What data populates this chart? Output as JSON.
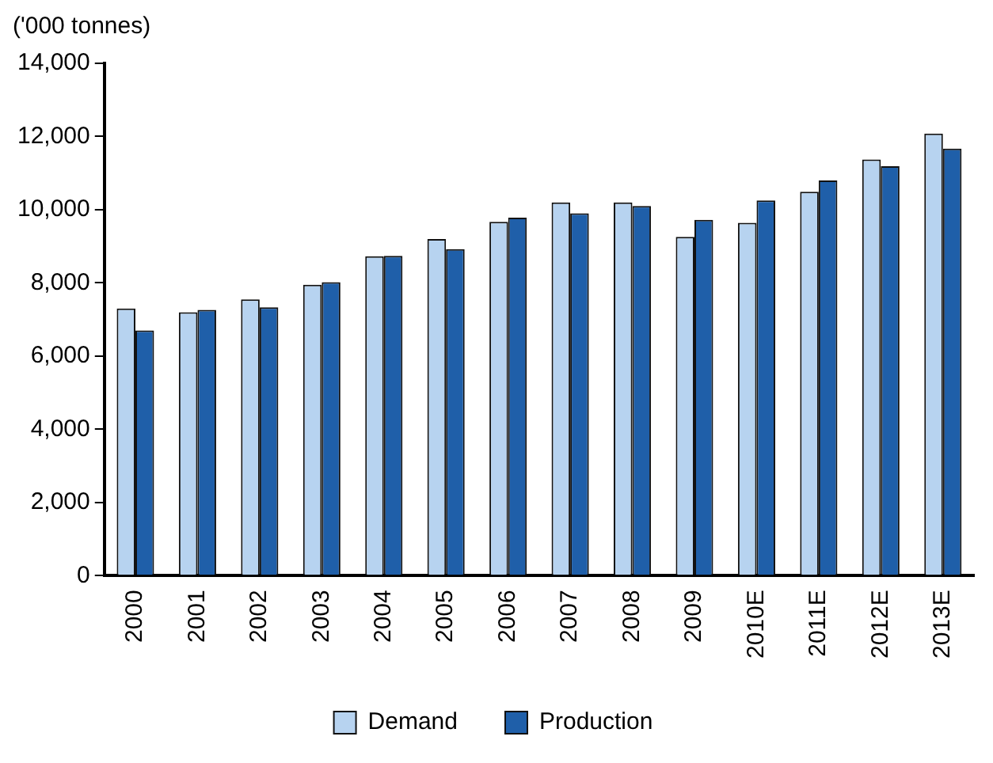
{
  "chart_data": {
    "type": "bar",
    "ylabel": "('000 tonnes)",
    "categories": [
      "2000",
      "2001",
      "2002",
      "2003",
      "2004",
      "2005",
      "2006",
      "2007",
      "2008",
      "2009",
      "2010E",
      "2011E",
      "2012E",
      "2013E"
    ],
    "series": [
      {
        "name": "Demand",
        "color": "#b7d3f0",
        "values": [
          7300,
          7200,
          7550,
          7950,
          8730,
          9200,
          9670,
          10200,
          10200,
          9260,
          9640,
          10490,
          11370,
          12080
        ]
      },
      {
        "name": "Production",
        "color": "#1f5fa9",
        "values": [
          6700,
          7260,
          7330,
          8020,
          8740,
          8920,
          9780,
          9900,
          10100,
          9720,
          10250,
          10800,
          11190,
          11670
        ]
      }
    ],
    "ylim": [
      0,
      14000
    ],
    "yticks": [
      0,
      {
        "value": 2000,
        "label": "2,000"
      },
      {
        "value": 4000,
        "label": "4,000"
      },
      {
        "value": 6000,
        "label": "6,000"
      },
      {
        "value": 8000,
        "label": "8,000"
      },
      {
        "value": 10000,
        "label": "10,000"
      },
      {
        "value": 12000,
        "label": "12,000"
      },
      {
        "value": 14000,
        "label": "14,000"
      }
    ],
    "grid": false,
    "legend": "bottom"
  }
}
